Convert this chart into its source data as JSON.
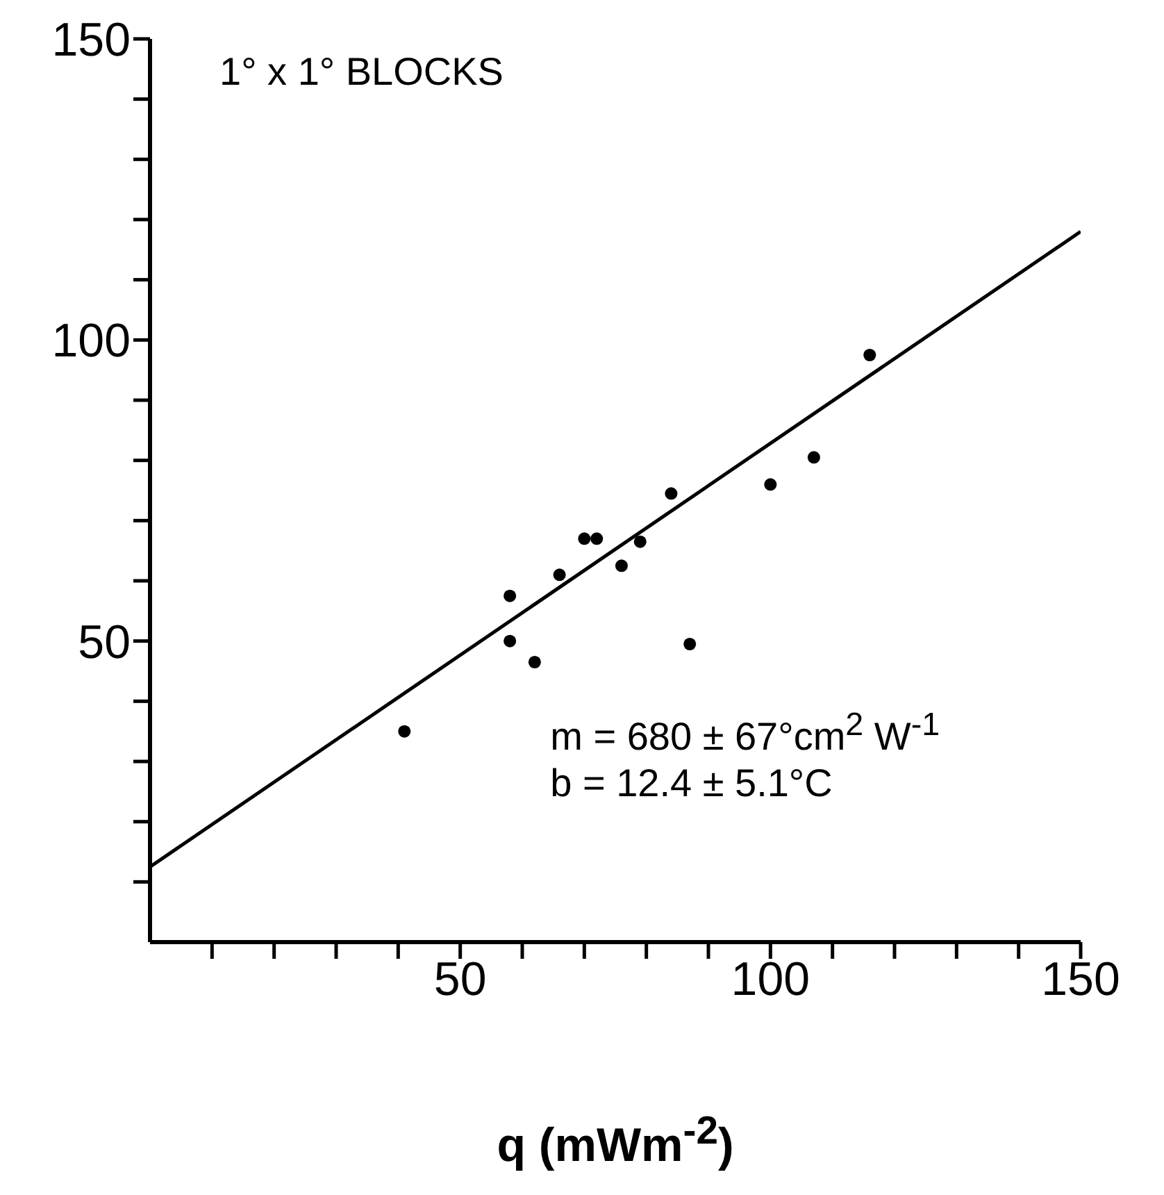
{
  "chart_data": {
    "type": "scatter",
    "xlabel": "q (mWm$^{-2}$)",
    "annotations": [
      "1° x 1° BLOCKS",
      "m = 680 ± 67°cm$^{2}$ W$^{-1}$",
      "b = 12.4 ± 5.1°C"
    ],
    "xlim": [
      0,
      150
    ],
    "ylim": [
      0,
      150
    ],
    "xticks": [
      {
        "value": 10,
        "label": null
      },
      {
        "value": 20,
        "label": null
      },
      {
        "value": 30,
        "label": null
      },
      {
        "value": 40,
        "label": null
      },
      50,
      {
        "value": 60,
        "label": null
      },
      {
        "value": 70,
        "label": null
      },
      {
        "value": 80,
        "label": null
      },
      {
        "value": 90,
        "label": null
      },
      100,
      {
        "value": 110,
        "label": null
      },
      {
        "value": 120,
        "label": null
      },
      {
        "value": 130,
        "label": null
      },
      {
        "value": 140,
        "label": null
      },
      150
    ],
    "yticks": [
      {
        "value": 10,
        "label": null
      },
      {
        "value": 20,
        "label": null
      },
      {
        "value": 30,
        "label": null
      },
      {
        "value": 40,
        "label": null
      },
      50,
      {
        "value": 60,
        "label": null
      },
      {
        "value": 70,
        "label": null
      },
      {
        "value": 80,
        "label": null
      },
      {
        "value": 90,
        "label": null
      },
      100,
      {
        "value": 110,
        "label": null
      },
      {
        "value": 120,
        "label": null
      },
      {
        "value": 130,
        "label": null
      },
      {
        "value": 140,
        "label": null
      },
      150
    ],
    "grid": false,
    "marker": "circle",
    "series": [
      {
        "color": "#000000",
        "x": [
          41,
          58,
          58,
          62,
          66,
          70,
          72,
          76,
          79,
          84,
          87,
          100,
          107,
          116
        ],
        "values": [
          35,
          57.5,
          50,
          46.5,
          61,
          67,
          67,
          62.5,
          66.5,
          74.5,
          49.5,
          76,
          80.5,
          97.5
        ]
      },
      {
        "type": "line",
        "color": "#000000",
        "marker": "none",
        "x": [
          0,
          150
        ],
        "values": [
          12.5,
          118
        ]
      }
    ]
  }
}
